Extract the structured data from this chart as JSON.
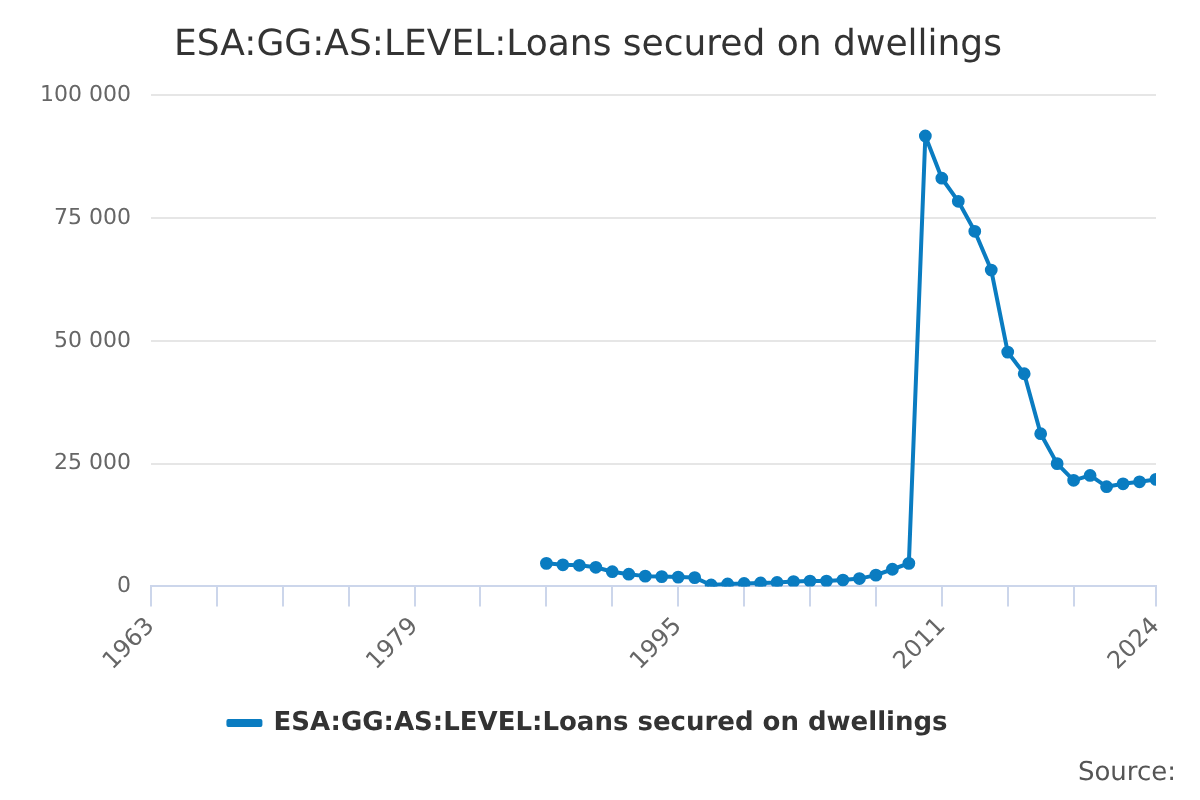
{
  "chart_data": {
    "type": "line",
    "title": "ESA:GG:AS:LEVEL:Loans secured on dwellings",
    "x": [
      1987,
      1988,
      1989,
      1990,
      1991,
      1992,
      1993,
      1994,
      1995,
      1996,
      1997,
      1998,
      1999,
      2000,
      2001,
      2002,
      2003,
      2004,
      2005,
      2006,
      2007,
      2008,
      2009,
      2010,
      2011,
      2012,
      2013,
      2014,
      2015,
      2016,
      2017,
      2018,
      2019,
      2020,
      2021,
      2022,
      2023,
      2024
    ],
    "series": [
      {
        "name": "ESA:GG:AS:LEVEL:Loans secured on dwellings",
        "color": "#0a7cc1",
        "values": [
          4700,
          4400,
          4300,
          3900,
          3000,
          2500,
          2100,
          2000,
          1900,
          1800,
          300,
          500,
          600,
          700,
          800,
          1000,
          1100,
          1100,
          1300,
          1600,
          2300,
          3500,
          4700,
          91700,
          83100,
          78400,
          72300,
          64400,
          47700,
          43300,
          31100,
          25000,
          21600,
          22600,
          20300,
          20900,
          21300,
          21800
        ]
      }
    ],
    "xlim": [
      1963,
      2024
    ],
    "xticks": [
      1963,
      {
        "value": 1967,
        "label": null
      },
      {
        "value": 1971,
        "label": null
      },
      {
        "value": 1975,
        "label": null
      },
      1979,
      {
        "value": 1983,
        "label": null
      },
      {
        "value": 1987,
        "label": null
      },
      {
        "value": 1991,
        "label": null
      },
      1995,
      {
        "value": 1999,
        "label": null
      },
      {
        "value": 2003,
        "label": null
      },
      {
        "value": 2007,
        "label": null
      },
      2011,
      {
        "value": 2015,
        "label": null
      },
      {
        "value": 2019,
        "label": null
      },
      2024
    ],
    "ylim": [
      0,
      100000
    ],
    "yticks": [
      0,
      {
        "value": 25000,
        "label": "25 000"
      },
      {
        "value": 50000,
        "label": "50 000"
      },
      {
        "value": 75000,
        "label": "75 000"
      },
      {
        "value": 100000,
        "label": "100 000"
      }
    ],
    "grid": "y",
    "legend": "bottom",
    "marker": "circle",
    "line_style": "solid",
    "annotations": [
      "Source:"
    ]
  }
}
